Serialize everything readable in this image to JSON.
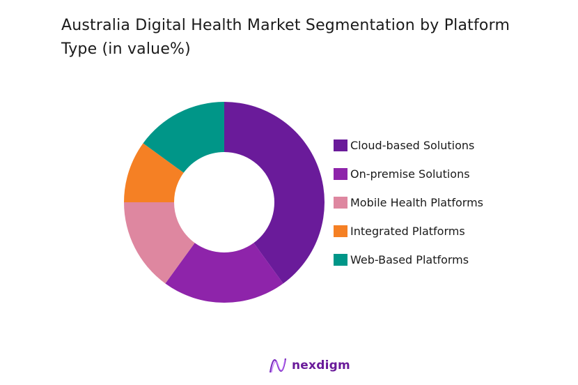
{
  "title": "Australia Digital Health Market Segmentation by Platform Type (in value%)",
  "chart_data": {
    "type": "pie",
    "variant": "donut",
    "title": "Australia Digital Health Market Segmentation by Platform Type (in value%)",
    "categories": [
      "Cloud-based Solutions",
      "On-premise Solutions",
      "Mobile Health Platforms",
      "Integrated Platforms",
      "Web-Based Platforms"
    ],
    "values": [
      40,
      20,
      15,
      10,
      15
    ],
    "colors": [
      "#6a1b9a",
      "#8e24aa",
      "#de87a0",
      "#f58024",
      "#009688"
    ],
    "start_angle_deg": 0,
    "direction": "clockwise",
    "legend_position": "right",
    "data_labels": false
  },
  "legend": [
    {
      "label": "Cloud-based Solutions",
      "color": "#6a1b9a"
    },
    {
      "label": "On-premise Solutions",
      "color": "#8e24aa"
    },
    {
      "label": "Mobile Health Platforms",
      "color": "#de87a0"
    },
    {
      "label": "Integrated Platforms",
      "color": "#f58024"
    },
    {
      "label": "Web-Based Platforms",
      "color": "#009688"
    }
  ],
  "logo": {
    "text": "nexdigm",
    "icon": "nexdigm-wave-logo-icon"
  }
}
